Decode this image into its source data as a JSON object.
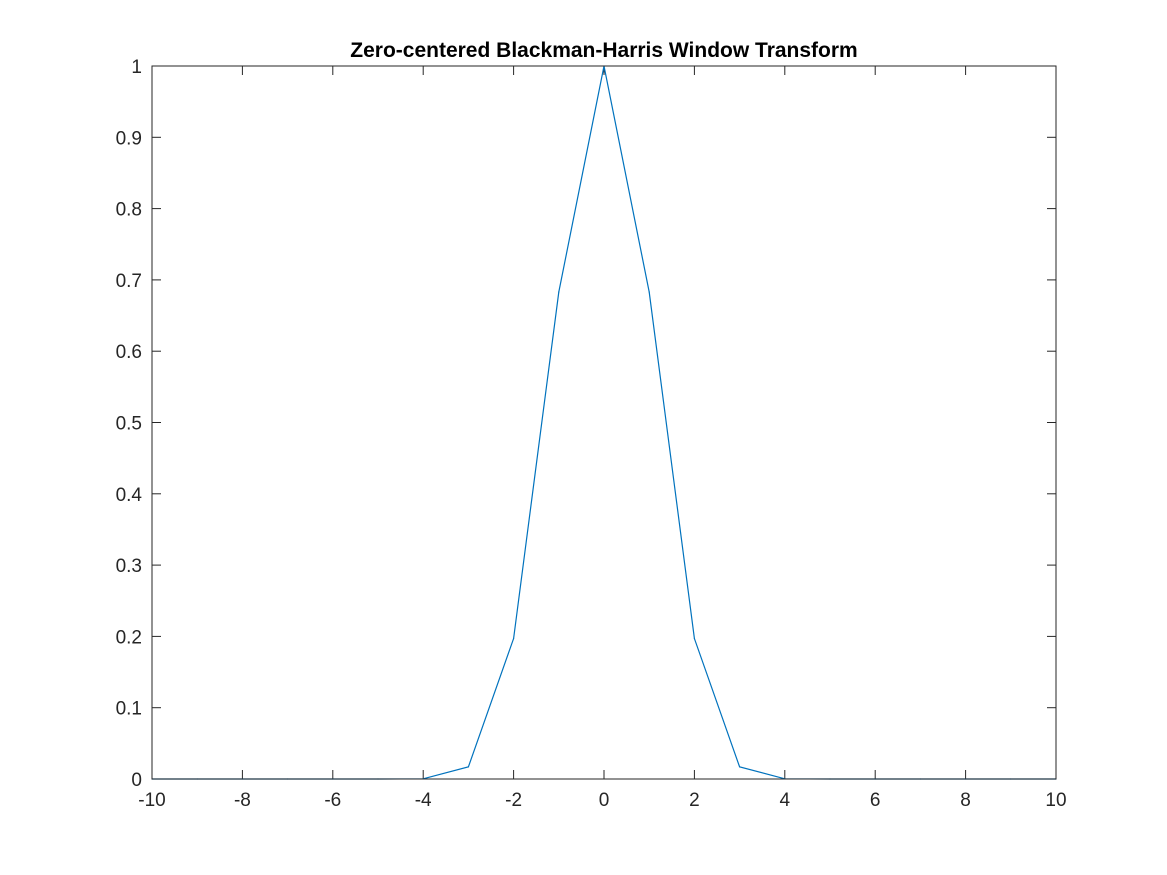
{
  "chart_data": {
    "type": "line",
    "title": "Zero-centered Blackman-Harris Window Transform",
    "xlabel": "",
    "ylabel": "",
    "xlim": [
      -10,
      10
    ],
    "ylim": [
      0,
      1
    ],
    "xticks": [
      -10,
      -8,
      -6,
      -4,
      -2,
      0,
      2,
      4,
      6,
      8,
      10
    ],
    "yticks": [
      0,
      0.1,
      0.2,
      0.3,
      0.4,
      0.5,
      0.6,
      0.7,
      0.8,
      0.9,
      1
    ],
    "grid": false,
    "legend": "none",
    "series": [
      {
        "color": "#0072bd",
        "x": [
          -10,
          -9,
          -8,
          -7,
          -6,
          -5,
          -4,
          -3,
          -2,
          -1,
          0,
          1,
          2,
          3,
          4,
          5,
          6,
          7,
          8,
          9,
          10
        ],
        "y": [
          0,
          0,
          0,
          0,
          0,
          0,
          0.0003,
          0.017,
          0.197,
          0.683,
          1,
          0.683,
          0.197,
          0.017,
          0.0003,
          0,
          0,
          0,
          0,
          0,
          0
        ]
      }
    ]
  }
}
